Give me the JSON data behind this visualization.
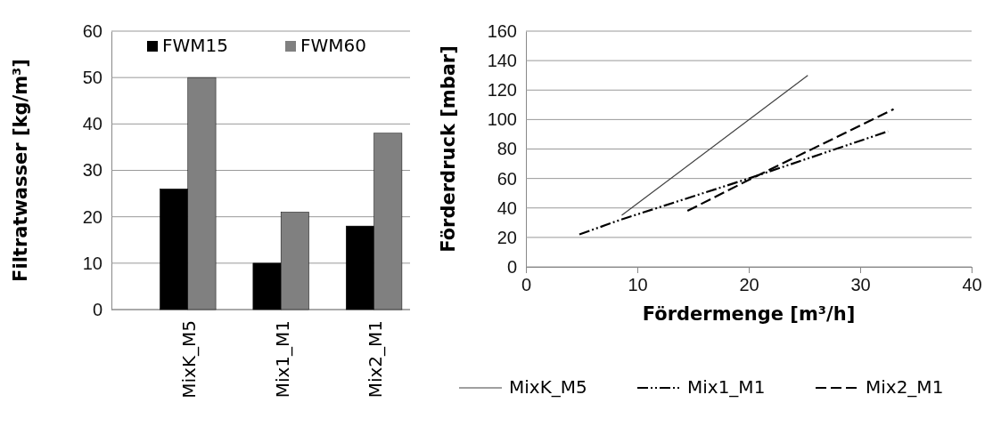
{
  "chart_data": [
    {
      "type": "bar",
      "ylabel": "Filtratwasser [kg/m³]",
      "categories": [
        "MixK_M5",
        "Mix1_M1",
        "Mix2_M1"
      ],
      "series": [
        {
          "name": "FWM15",
          "color": "#000000",
          "values": [
            26,
            10,
            18
          ]
        },
        {
          "name": "FWM60",
          "color": "#808080",
          "values": [
            50,
            21,
            38
          ]
        }
      ],
      "ylim": [
        0,
        60
      ],
      "yticks": [
        0,
        10,
        20,
        30,
        40,
        50,
        60
      ],
      "grid": "y",
      "legend": "top"
    },
    {
      "type": "line",
      "xlabel": "Fördermenge [m³/h]",
      "ylabel": "Förderdruck [mbar]",
      "series": [
        {
          "name": "MixK_M5",
          "color": "#404040",
          "line_style": "solid",
          "x": [
            8.6,
            25.3
          ],
          "values": [
            35,
            130
          ]
        },
        {
          "name": "Mix1_M1",
          "color": "#000000",
          "line_style": "dotted",
          "x": [
            4.8,
            8.5,
            20,
            32.5
          ],
          "values": [
            22,
            32,
            60,
            92
          ]
        },
        {
          "name": "Mix2_M1",
          "color": "#000000",
          "line_style": "dashed",
          "x": [
            14.5,
            20,
            33
          ],
          "values": [
            38,
            59,
            107
          ]
        }
      ],
      "xlim": [
        0,
        40
      ],
      "xticks": [
        0,
        10,
        20,
        30,
        40
      ],
      "ylim": [
        0,
        160
      ],
      "yticks": [
        0,
        20,
        40,
        60,
        80,
        100,
        120,
        140,
        160
      ],
      "grid": "y",
      "legend": "bottom"
    }
  ]
}
